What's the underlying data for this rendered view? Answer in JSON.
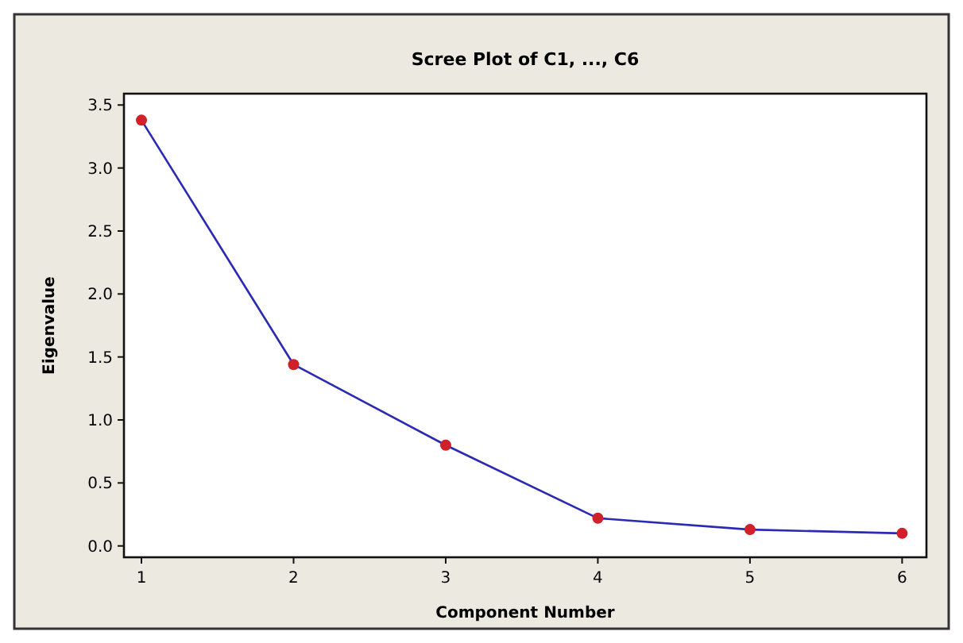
{
  "chart_data": {
    "type": "line",
    "title": "Scree Plot of C1, ..., C6",
    "xlabel": "Component Number",
    "ylabel": "Eigenvalue",
    "x": [
      1,
      2,
      3,
      4,
      5,
      6
    ],
    "series": [
      {
        "color": "#2a2ab4",
        "values": [
          3.38,
          1.44,
          0.8,
          0.22,
          0.13,
          0.1
        ]
      }
    ],
    "xlim": [
      0.885,
      6.16
    ],
    "xticks": [
      1,
      2,
      3,
      4,
      5,
      6
    ],
    "ylim": [
      -0.09,
      3.59
    ],
    "yticks": [
      {
        "value": 0,
        "label": "0.0"
      },
      {
        "value": 0.5,
        "label": "0.5"
      },
      {
        "value": 1,
        "label": "1.0"
      },
      {
        "value": 1.5,
        "label": "1.5"
      },
      {
        "value": 2,
        "label": "2.0"
      },
      {
        "value": 2.5,
        "label": "2.5"
      },
      {
        "value": 3,
        "label": "3.0"
      },
      {
        "value": 3.5,
        "label": "3.5"
      }
    ],
    "grid": false,
    "marker": "circle",
    "line_style": "solid"
  }
}
